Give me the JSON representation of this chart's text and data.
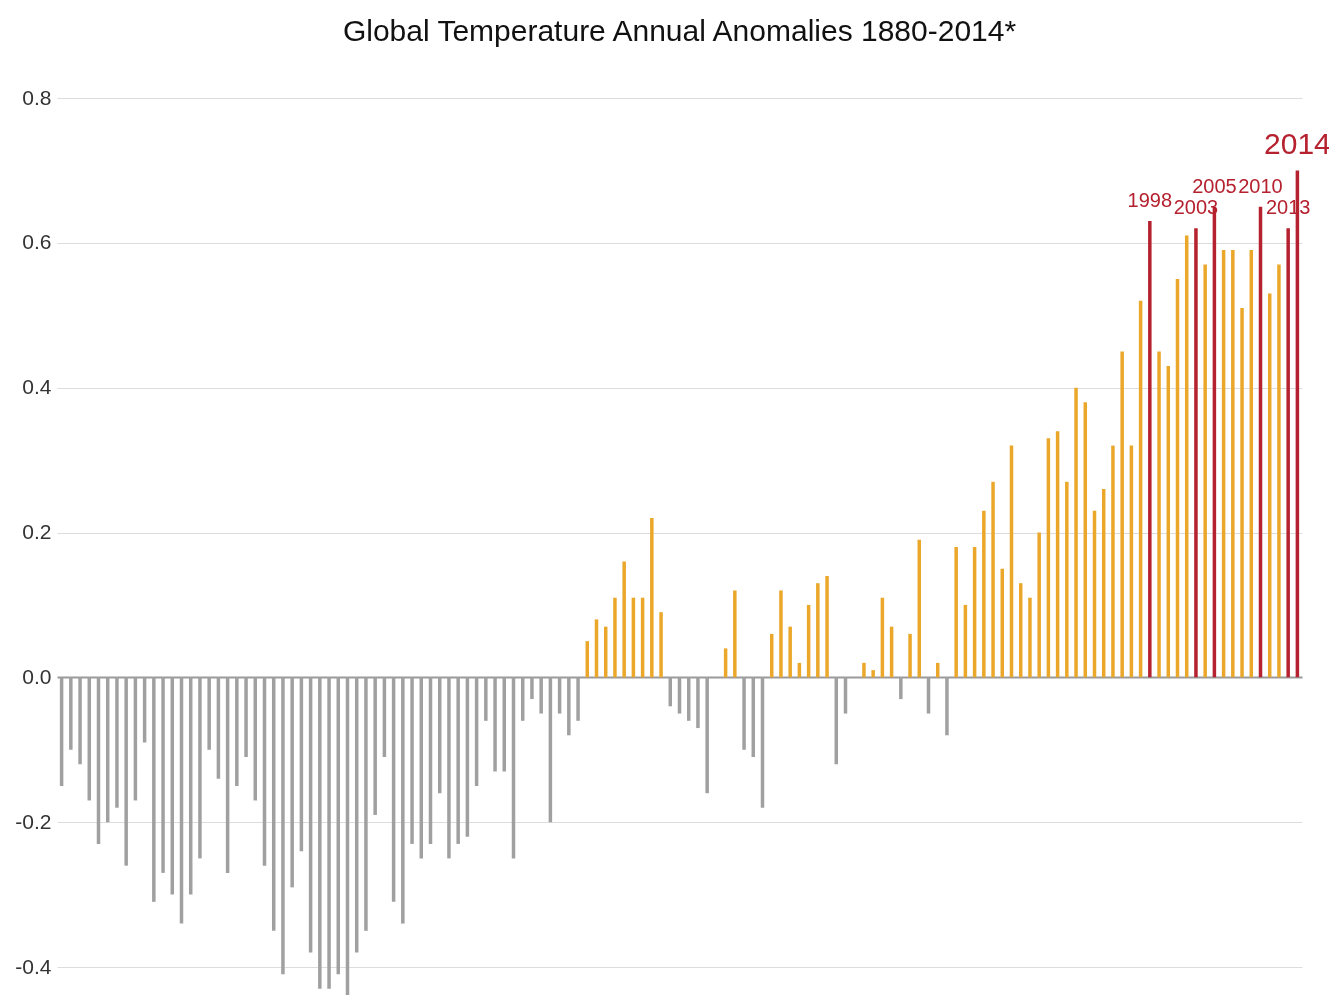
{
  "chart_data": {
    "type": "bar",
    "title": "Global Temperature Annual Anomalies 1880-2014*",
    "categories": [
      null,
      null,
      null,
      null,
      null,
      null,
      null,
      null,
      null,
      null,
      null,
      null,
      null,
      null,
      null,
      null,
      null,
      null,
      null,
      null,
      null,
      null,
      null,
      null,
      null,
      null,
      null,
      null,
      null,
      null,
      null,
      null,
      null,
      null,
      null,
      null,
      null,
      null,
      null,
      null,
      null,
      null,
      null,
      null,
      null,
      null,
      null,
      null,
      null,
      null,
      null,
      null,
      null,
      null,
      null,
      null,
      null,
      null,
      null,
      null,
      null,
      null,
      null,
      null,
      null,
      null,
      null,
      null,
      null,
      null,
      null,
      null,
      null,
      null,
      null,
      null,
      null,
      null,
      null,
      null,
      null,
      null,
      null,
      null,
      null,
      null,
      null,
      null,
      null,
      null,
      null,
      null,
      null,
      null,
      null,
      null,
      null,
      null,
      null,
      null,
      null,
      null,
      null,
      null,
      null,
      null,
      null,
      null,
      null,
      null,
      null,
      null,
      null,
      null,
      null,
      null,
      null,
      null,
      "1998",
      null,
      null,
      null,
      null,
      "2003",
      null,
      "2005",
      null,
      null,
      null,
      null,
      "2010",
      null,
      null,
      "2013",
      "2014"
    ],
    "values": [
      -0.15,
      -0.1,
      -0.12,
      -0.17,
      -0.23,
      -0.2,
      -0.18,
      -0.26,
      -0.17,
      -0.09,
      -0.31,
      -0.27,
      -0.3,
      -0.34,
      -0.3,
      -0.25,
      -0.1,
      -0.14,
      -0.27,
      -0.15,
      -0.11,
      -0.17,
      -0.26,
      -0.35,
      -0.41,
      -0.29,
      -0.24,
      -0.38,
      -0.43,
      -0.43,
      -0.41,
      -0.44,
      -0.38,
      -0.35,
      -0.19,
      -0.11,
      -0.31,
      -0.34,
      -0.23,
      -0.25,
      -0.23,
      -0.16,
      -0.25,
      -0.23,
      -0.22,
      -0.15,
      -0.06,
      -0.13,
      -0.13,
      -0.25,
      -0.06,
      -0.03,
      -0.05,
      -0.2,
      -0.05,
      -0.08,
      -0.06,
      0.05,
      0.08,
      0.07,
      0.11,
      0.16,
      0.11,
      0.11,
      0.22,
      0.09,
      -0.04,
      -0.05,
      -0.06,
      -0.07,
      -0.16,
      0,
      0.04,
      0.12,
      -0.1,
      -0.11,
      -0.18,
      0.06,
      0.12,
      0.07,
      0.02,
      0.1,
      0.13,
      0.14,
      -0.12,
      -0.05,
      0,
      0.02,
      0.01,
      0.11,
      0.07,
      -0.03,
      0.06,
      0.19,
      -0.05,
      0.02,
      -0.08,
      0.18,
      0.1,
      0.18,
      0.23,
      0.27,
      0.15,
      0.32,
      0.13,
      0.11,
      0.2,
      0.33,
      0.34,
      0.27,
      0.4,
      0.38,
      0.23,
      0.26,
      0.32,
      0.45,
      0.32,
      0.52,
      0.63,
      0.45,
      0.43,
      0.55,
      0.61,
      0.62,
      0.57,
      0.65,
      0.59,
      0.59,
      0.51,
      0.59,
      0.65,
      0.53,
      0.57,
      0.62,
      0.7
    ],
    "colors": [
      "#a0a0a0",
      "#a0a0a0",
      "#a0a0a0",
      "#a0a0a0",
      "#a0a0a0",
      "#a0a0a0",
      "#a0a0a0",
      "#a0a0a0",
      "#a0a0a0",
      "#a0a0a0",
      "#a0a0a0",
      "#a0a0a0",
      "#a0a0a0",
      "#a0a0a0",
      "#a0a0a0",
      "#a0a0a0",
      "#a0a0a0",
      "#a0a0a0",
      "#a0a0a0",
      "#a0a0a0",
      "#a0a0a0",
      "#a0a0a0",
      "#a0a0a0",
      "#a0a0a0",
      "#a0a0a0",
      "#a0a0a0",
      "#a0a0a0",
      "#a0a0a0",
      "#a0a0a0",
      "#a0a0a0",
      "#a0a0a0",
      "#a0a0a0",
      "#a0a0a0",
      "#a0a0a0",
      "#a0a0a0",
      "#a0a0a0",
      "#a0a0a0",
      "#a0a0a0",
      "#a0a0a0",
      "#a0a0a0",
      "#a0a0a0",
      "#a0a0a0",
      "#a0a0a0",
      "#a0a0a0",
      "#a0a0a0",
      "#a0a0a0",
      "#a0a0a0",
      "#a0a0a0",
      "#a0a0a0",
      "#a0a0a0",
      "#a0a0a0",
      "#a0a0a0",
      "#a0a0a0",
      "#a0a0a0",
      "#a0a0a0",
      "#a0a0a0",
      "#a0a0a0",
      "#eaa72a",
      "#eaa72a",
      "#eaa72a",
      "#eaa72a",
      "#eaa72a",
      "#eaa72a",
      "#eaa72a",
      "#eaa72a",
      "#eaa72a",
      "#a0a0a0",
      "#a0a0a0",
      "#a0a0a0",
      "#a0a0a0",
      "#a0a0a0",
      "#a0a0a0",
      "#eaa72a",
      "#eaa72a",
      "#a0a0a0",
      "#a0a0a0",
      "#a0a0a0",
      "#eaa72a",
      "#eaa72a",
      "#eaa72a",
      "#eaa72a",
      "#eaa72a",
      "#eaa72a",
      "#eaa72a",
      "#a0a0a0",
      "#a0a0a0",
      "#a0a0a0",
      "#eaa72a",
      "#eaa72a",
      "#eaa72a",
      "#eaa72a",
      "#a0a0a0",
      "#eaa72a",
      "#eaa72a",
      "#a0a0a0",
      "#eaa72a",
      "#a0a0a0",
      "#eaa72a",
      "#eaa72a",
      "#eaa72a",
      "#eaa72a",
      "#eaa72a",
      "#eaa72a",
      "#eaa72a",
      "#eaa72a",
      "#eaa72a",
      "#eaa72a",
      "#eaa72a",
      "#eaa72a",
      "#eaa72a",
      "#eaa72a",
      "#eaa72a",
      "#eaa72a",
      "#eaa72a",
      "#eaa72a",
      "#eaa72a",
      "#eaa72a",
      "#eaa72a",
      "#b5212e",
      "#eaa72a",
      "#eaa72a",
      "#eaa72a",
      "#eaa72a",
      "#b5212e",
      "#eaa72a",
      "#b5212e",
      "#eaa72a",
      "#eaa72a",
      "#eaa72a",
      "#eaa72a",
      "#b5212e",
      "#eaa72a",
      "#eaa72a",
      "#b5212e",
      "#b5212e"
    ],
    "ylim": [
      -0.44,
      0.8
    ],
    "yticks": [
      -0.4,
      -0.2,
      {
        "value": 0,
        "label": "0.0"
      },
      0.2,
      0.4,
      0.6,
      0.8
    ],
    "tick_labels": "y",
    "grid": "y"
  }
}
